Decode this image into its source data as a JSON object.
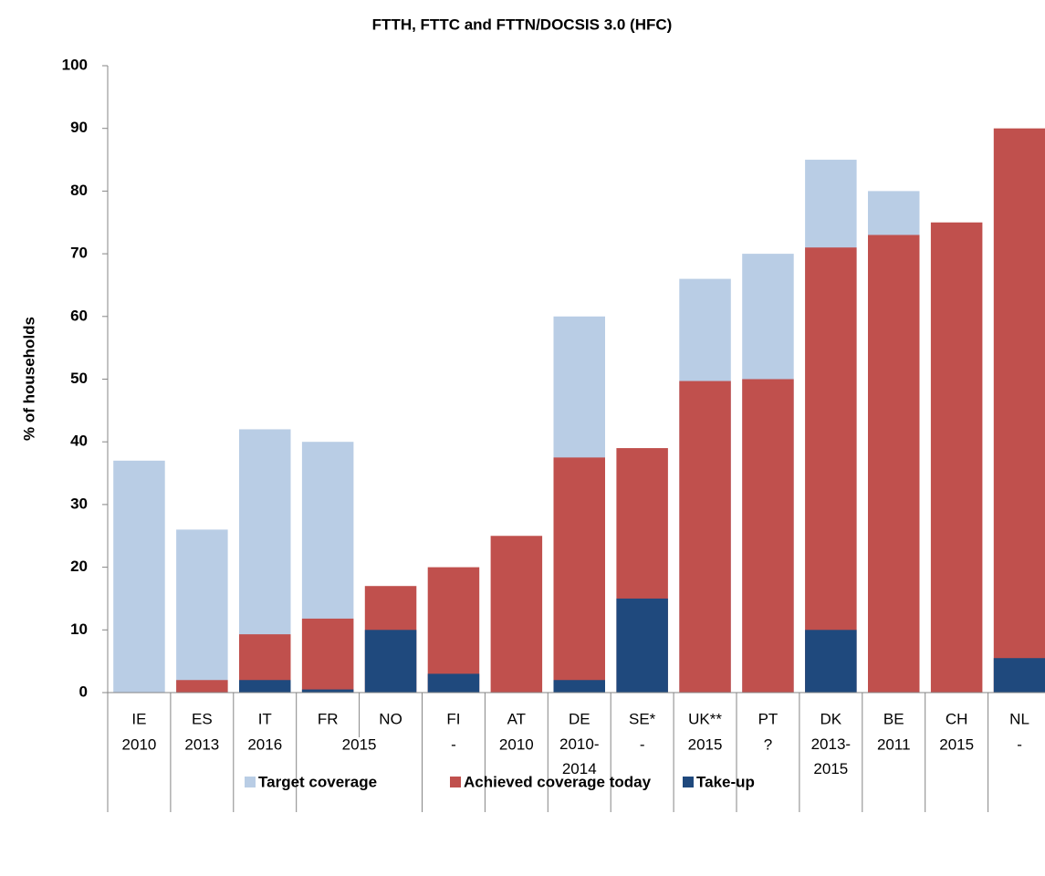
{
  "chart_data": {
    "type": "bar",
    "title": "FTTH, FTTC and FTTN/DOCSIS 3.0 (HFC)",
    "ylabel": "% of households",
    "categories": [
      "IE",
      "ES",
      "IT",
      "FR",
      "NO",
      "FI",
      "AT",
      "DE",
      "SE*",
      "UK**",
      "PT",
      "DK",
      "BE",
      "CH",
      "NL"
    ],
    "years": [
      "2010",
      "2013",
      "2016",
      "2015",
      null,
      "-",
      "2010",
      "2010-2014",
      "-",
      "2015",
      "?",
      "2013-2015",
      "2011",
      "2015",
      "-"
    ],
    "series": [
      {
        "name": "Target coverage",
        "color": "#b9cde5",
        "values": [
          37,
          26,
          42,
          40,
          null,
          null,
          null,
          60,
          null,
          66,
          70,
          85,
          80,
          null,
          null
        ]
      },
      {
        "name": "Achieved coverage today",
        "color": "#c0504d",
        "values": [
          0,
          2,
          9.3,
          11.8,
          17,
          20,
          25,
          37.5,
          39,
          49.7,
          50,
          71,
          73,
          75,
          90
        ]
      },
      {
        "name": "Take-up",
        "color": "#1f497d",
        "values": [
          0,
          0,
          2,
          0.5,
          10,
          3,
          0,
          2,
          15,
          0,
          0,
          10,
          null,
          null,
          5.5
        ]
      }
    ],
    "ylim": [
      0,
      100
    ],
    "yticks": [
      0,
      10,
      20,
      30,
      40,
      50,
      60,
      70,
      80,
      90,
      100
    ],
    "grid": false
  }
}
